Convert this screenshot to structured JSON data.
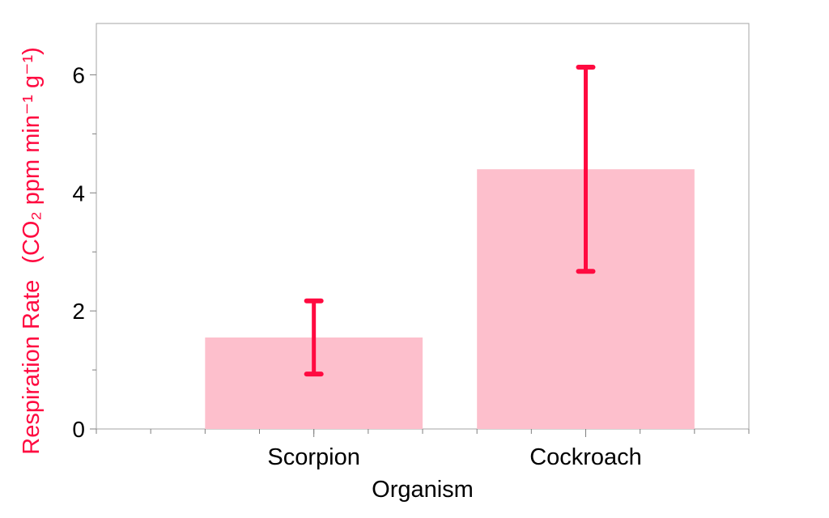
{
  "chart_data": {
    "type": "bar",
    "categories": [
      "Scorpion",
      "Cockroach"
    ],
    "values": [
      1.55,
      4.4
    ],
    "error_low": [
      0.93,
      2.67
    ],
    "error_high": [
      2.17,
      6.13
    ],
    "xlabel": "Organism",
    "ylabel": "Respiration Rate",
    "ylabel_units": "(CO₂ ppm min⁻¹ g⁻¹)",
    "ylim": [
      0,
      6.87
    ],
    "yticks": [
      0,
      2,
      4,
      6
    ],
    "ytick_labels": [
      "0",
      "2",
      "4",
      "6"
    ],
    "grid": false,
    "legend": "none",
    "colors": {
      "bar": "#fdbfcc",
      "error_bar": "#ff0a40",
      "ylabel": "#ff0a40",
      "axis": "#7f7f7f",
      "text": "#000000"
    }
  }
}
